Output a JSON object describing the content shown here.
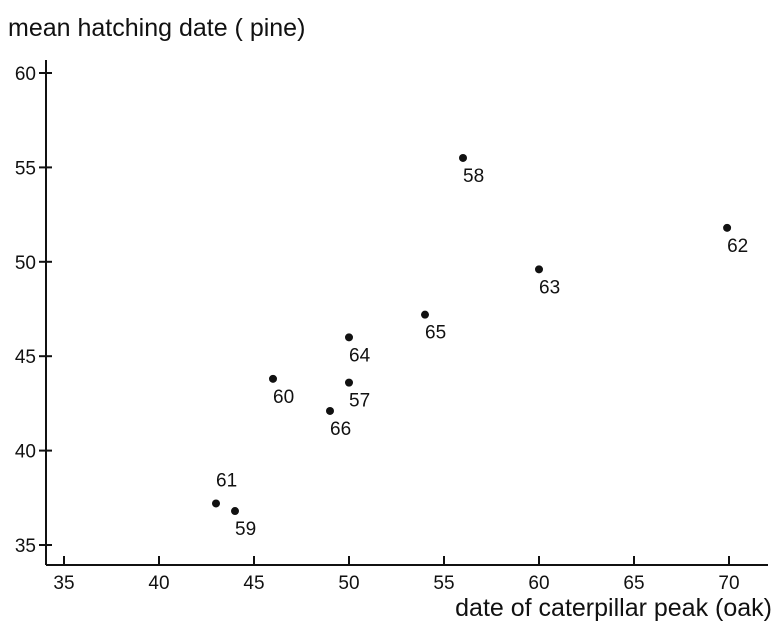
{
  "chart_data": {
    "type": "scatter",
    "title": "",
    "xlabel": "date of caterpillar peak (oak)",
    "ylabel": "mean hatching date ( pine)",
    "xlim": [
      34,
      72
    ],
    "ylim": [
      34,
      61
    ],
    "xticks": [
      35,
      40,
      45,
      50,
      55,
      60,
      65,
      70
    ],
    "yticks": [
      35,
      40,
      45,
      50,
      55,
      60
    ],
    "grid": false,
    "legend": "none",
    "points": [
      {
        "label": "58",
        "x": 56,
        "y": 55.5
      },
      {
        "label": "62",
        "x": 69.9,
        "y": 51.8
      },
      {
        "label": "63",
        "x": 60,
        "y": 49.6
      },
      {
        "label": "65",
        "x": 54,
        "y": 47.2
      },
      {
        "label": "64",
        "x": 50,
        "y": 46
      },
      {
        "label": "60",
        "x": 46,
        "y": 43.8
      },
      {
        "label": "57",
        "x": 50,
        "y": 43.6
      },
      {
        "label": "66",
        "x": 49,
        "y": 42.1
      },
      {
        "label": "61",
        "x": 43,
        "y": 37.2
      },
      {
        "label": "59",
        "x": 44,
        "y": 36.8
      }
    ]
  }
}
